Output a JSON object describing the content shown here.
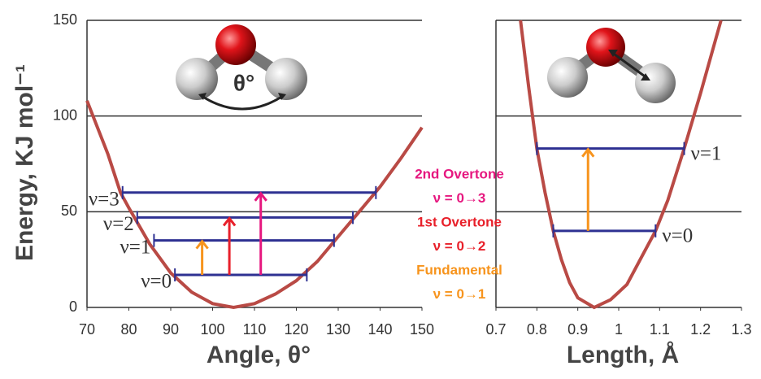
{
  "chart_data": [
    {
      "type": "line",
      "xlabel": "Angle, θ°",
      "ylabel": "Energy, KJ mol⁻¹",
      "xlim": [
        70,
        150
      ],
      "ylim": [
        0,
        150
      ],
      "xticks": [
        70,
        80,
        90,
        100,
        110,
        120,
        130,
        140,
        150
      ],
      "yticks": [
        0,
        50,
        100,
        150
      ],
      "grid": true,
      "show_ytick_labels": true,
      "curve": {
        "color": "#b94a45",
        "x": [
          70,
          75,
          78,
          80,
          85,
          90,
          95,
          100,
          105,
          110,
          115,
          120,
          125,
          130,
          135,
          140,
          145,
          150
        ],
        "values": [
          108,
          80,
          60,
          52,
          33,
          18,
          8,
          2,
          0,
          2,
          7,
          14,
          24,
          37,
          50,
          63,
          78,
          94
        ]
      },
      "levels": {
        "color": "#2e3192",
        "labels": [
          "ν=0",
          "ν=1",
          "ν=2",
          "ν=3"
        ],
        "values": [
          17,
          35,
          47,
          60
        ],
        "x_start": [
          91,
          86,
          82,
          78.5
        ],
        "x_end": [
          122.5,
          129,
          133.5,
          139
        ]
      },
      "transitions": {
        "x": [
          97.5,
          104,
          111.5
        ],
        "from": [
          17,
          17,
          17
        ],
        "to": [
          35,
          47,
          60
        ],
        "colors": [
          "#f7941d",
          "#e8202a",
          "#e6177f"
        ]
      },
      "molecule_label": "θ°"
    },
    {
      "type": "line",
      "xlabel": "Length, Å",
      "xlim": [
        0.7,
        1.3
      ],
      "ylim": [
        0,
        150
      ],
      "xticks": [
        0.7,
        0.8,
        0.9,
        1,
        1.1,
        1.2,
        1.3
      ],
      "yticks": [
        50,
        100,
        150
      ],
      "grid": true,
      "show_ytick_labels": false,
      "curve": {
        "color": "#b94a45",
        "x": [
          0.76,
          0.78,
          0.8,
          0.82,
          0.84,
          0.86,
          0.88,
          0.9,
          0.94,
          0.98,
          1.02,
          1.06,
          1.09,
          1.12,
          1.16,
          1.2,
          1.25
        ],
        "values": [
          150,
          115,
          83,
          60,
          40,
          25,
          13,
          5,
          0,
          4,
          12,
          28,
          40,
          56,
          83,
          112,
          150
        ]
      },
      "levels": {
        "color": "#2e3192",
        "labels": [
          "ν=0",
          "ν=1"
        ],
        "values": [
          40,
          83
        ],
        "x_start": [
          0.84,
          0.8
        ],
        "x_end": [
          1.09,
          1.16
        ]
      },
      "transitions": {
        "x": [
          0.925
        ],
        "from": [
          40
        ],
        "to": [
          83
        ],
        "colors": [
          "#f7941d"
        ]
      }
    }
  ],
  "annotations": [
    {
      "text": "2nd Overtone",
      "color": "#e6177f"
    },
    {
      "text": "ν = 0→3",
      "color": "#e6177f"
    },
    {
      "text": "1st Overtone",
      "color": "#e8202a"
    },
    {
      "text": "ν = 0→2",
      "color": "#e8202a"
    },
    {
      "text": "Fundamental",
      "color": "#f7941d"
    },
    {
      "text": "ν = 0→1",
      "color": "#f7941d"
    }
  ]
}
